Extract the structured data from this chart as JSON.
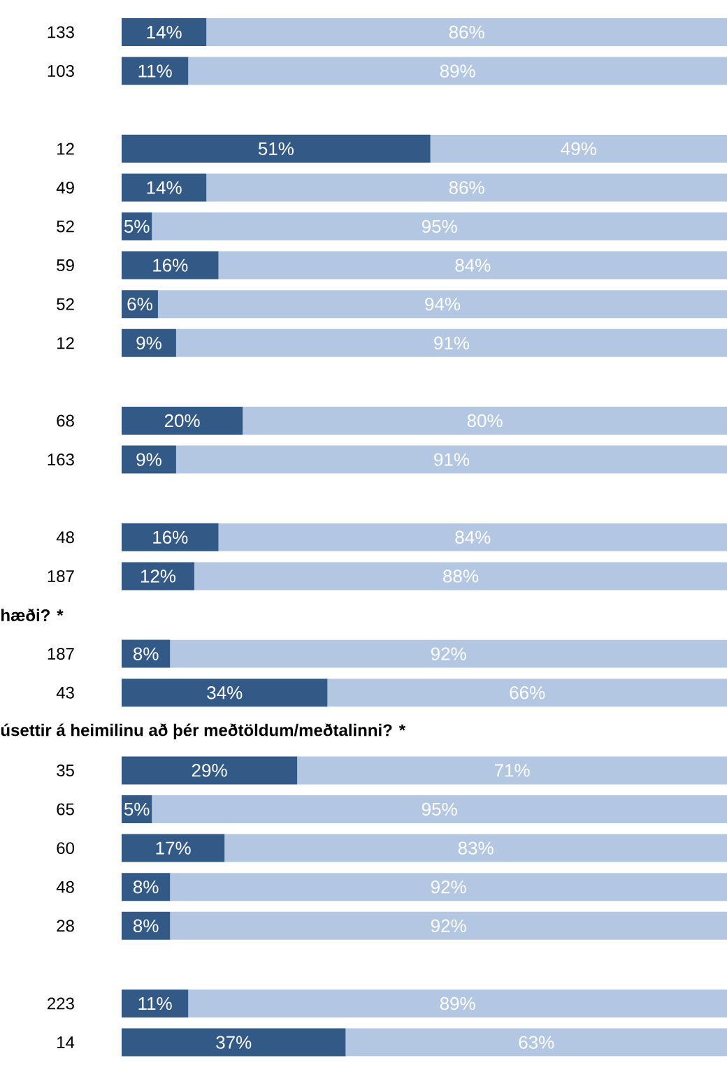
{
  "chart_data": [
    {
      "type": "bar",
      "orientation": "horizontal",
      "stacked": true,
      "categories": [
        "133",
        "103"
      ],
      "tick_labels": "y",
      "series": [
        {
          "color": "#335a86",
          "values": [
            14,
            11
          ],
          "value_labels": [
            "14%",
            "11%"
          ]
        },
        {
          "color": "#b3c7e2",
          "values": [
            86,
            89
          ],
          "value_labels": [
            "86%",
            "89%"
          ]
        }
      ]
    },
    {
      "type": "bar",
      "orientation": "horizontal",
      "stacked": true,
      "categories": [
        "12",
        "49",
        "52",
        "59",
        "52",
        "12"
      ],
      "tick_labels": "y",
      "series": [
        {
          "color": "#335a86",
          "values": [
            51,
            14,
            5,
            16,
            6,
            9
          ],
          "value_labels": [
            "51%",
            "14%",
            "5%",
            "16%",
            "6%",
            "9%"
          ]
        },
        {
          "color": "#b3c7e2",
          "values": [
            49,
            86,
            95,
            84,
            94,
            91
          ],
          "value_labels": [
            "49%",
            "86%",
            "95%",
            "84%",
            "94%",
            "91%"
          ]
        }
      ]
    },
    {
      "type": "bar",
      "orientation": "horizontal",
      "stacked": true,
      "categories": [
        "68",
        "163"
      ],
      "tick_labels": "y",
      "series": [
        {
          "color": "#335a86",
          "values": [
            20,
            9
          ],
          "value_labels": [
            "20%",
            "9%"
          ]
        },
        {
          "color": "#b3c7e2",
          "values": [
            80,
            91
          ],
          "value_labels": [
            "80%",
            "91%"
          ]
        }
      ]
    },
    {
      "type": "bar",
      "orientation": "horizontal",
      "stacked": true,
      "categories": [
        "48",
        "187"
      ],
      "tick_labels": "y",
      "series": [
        {
          "color": "#335a86",
          "values": [
            16,
            12
          ],
          "value_labels": [
            "16%",
            "12%"
          ]
        },
        {
          "color": "#b3c7e2",
          "values": [
            84,
            88
          ],
          "value_labels": [
            "84%",
            "88%"
          ]
        }
      ]
    },
    {
      "type": "bar",
      "orientation": "horizontal",
      "stacked": true,
      "title": "hæði? *",
      "categories": [
        "187",
        "43"
      ],
      "tick_labels": "y",
      "series": [
        {
          "color": "#335a86",
          "values": [
            8,
            34
          ],
          "value_labels": [
            "8%",
            "34%"
          ]
        },
        {
          "color": "#b3c7e2",
          "values": [
            92,
            66
          ],
          "value_labels": [
            "92%",
            "66%"
          ]
        }
      ]
    },
    {
      "type": "bar",
      "orientation": "horizontal",
      "stacked": true,
      "title": "úsettir á heimilinu að þér meðtöldum/meðtalinni? *",
      "categories": [
        "35",
        "65",
        "60",
        "48",
        "28"
      ],
      "tick_labels": "y",
      "series": [
        {
          "color": "#335a86",
          "values": [
            29,
            5,
            17,
            8,
            8
          ],
          "value_labels": [
            "29%",
            "5%",
            "17%",
            "8%",
            "8%"
          ]
        },
        {
          "color": "#b3c7e2",
          "values": [
            71,
            95,
            83,
            92,
            92
          ],
          "value_labels": [
            "71%",
            "95%",
            "83%",
            "92%",
            "92%"
          ]
        }
      ]
    },
    {
      "type": "bar",
      "orientation": "horizontal",
      "stacked": true,
      "categories": [
        "223",
        "14"
      ],
      "tick_labels": "y",
      "series": [
        {
          "color": "#335a86",
          "values": [
            11,
            37
          ],
          "value_labels": [
            "11%",
            "37%"
          ]
        },
        {
          "color": "#b3c7e2",
          "values": [
            89,
            63
          ],
          "value_labels": [
            "89%",
            "63%"
          ]
        }
      ]
    }
  ]
}
